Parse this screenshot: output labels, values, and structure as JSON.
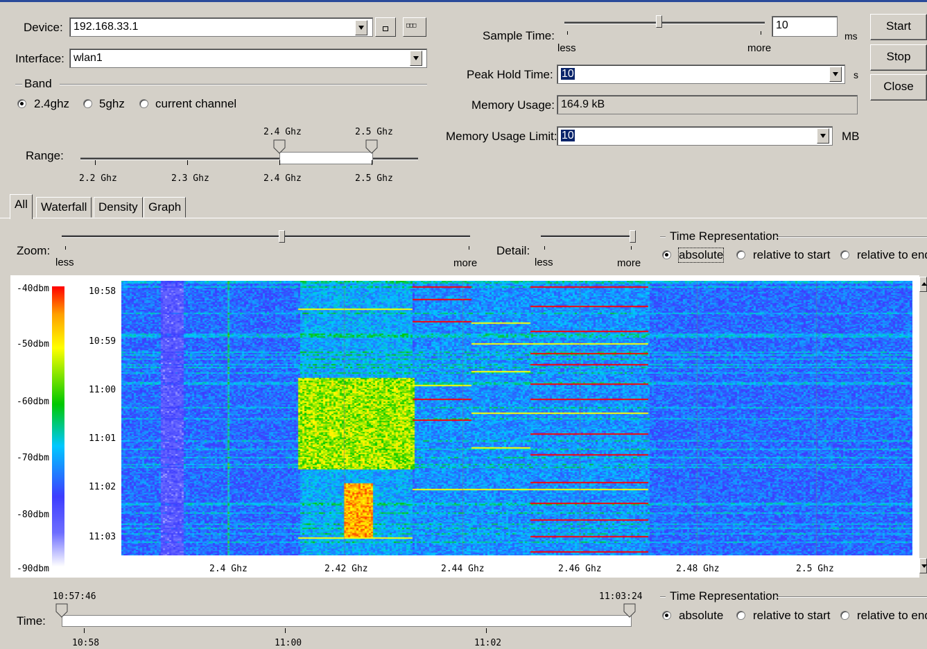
{
  "device": {
    "label": "Device:",
    "value": "192.168.33.1",
    "btn1": "▫",
    "btn2": "▫▫▫"
  },
  "interface": {
    "label": "Interface:",
    "value": "wlan1"
  },
  "band": {
    "label": "Band",
    "options": [
      {
        "label": "2.4ghz",
        "selected": true
      },
      {
        "label": "5ghz",
        "selected": false
      },
      {
        "label": "current channel",
        "selected": false
      }
    ]
  },
  "range": {
    "label": "Range:",
    "markers": [
      "2.4 Ghz",
      "2.5 Ghz"
    ],
    "ticks": [
      "2.2 Ghz",
      "2.3 Ghz",
      "2.4 Ghz",
      "2.5 Ghz"
    ]
  },
  "sample_time": {
    "label": "Sample Time:",
    "value": "10",
    "unit": "ms",
    "less": "less",
    "more": "more",
    "slider_fraction": 0.47
  },
  "peak_hold": {
    "label": "Peak Hold Time:",
    "value": "10",
    "unit": "s"
  },
  "memory_usage": {
    "label": "Memory Usage:",
    "value": "164.9 kB"
  },
  "memory_limit": {
    "label": "Memory Usage Limit:",
    "value": "10",
    "unit": "MB"
  },
  "buttons": {
    "start": "Start",
    "stop": "Stop",
    "close": "Close"
  },
  "tabs": [
    {
      "label": "All",
      "active": true
    },
    {
      "label": "Waterfall",
      "active": false
    },
    {
      "label": "Density",
      "active": false
    },
    {
      "label": "Graph",
      "active": false
    }
  ],
  "zoom": {
    "label": "Zoom:",
    "less": "less",
    "more": "more",
    "slider_fraction": 0.54
  },
  "detail": {
    "label": "Detail:",
    "less": "less",
    "more": "more",
    "slider_fraction": 1.0
  },
  "time_repr": {
    "title": "Time Representation",
    "options": [
      {
        "label": "absolute",
        "selected": true
      },
      {
        "label": "relative to start",
        "selected": false
      },
      {
        "label": "relative to end",
        "selected": false
      }
    ]
  },
  "waterfall": {
    "dbm_labels": [
      "-40dbm",
      "-50dbm",
      "-60dbm",
      "-70dbm",
      "-80dbm",
      "-90dbm"
    ],
    "time_labels": [
      "10:58",
      "10:59",
      "11:00",
      "11:01",
      "11:02",
      "11:03"
    ],
    "freq_labels": [
      "2.4 Ghz",
      "2.42 Ghz",
      "2.44 Ghz",
      "2.46 Ghz",
      "2.48 Ghz",
      "2.5 Ghz"
    ],
    "colors": {
      "max": "#ff0000",
      "high": "#ffff00",
      "mid": "#00c800",
      "low": "#00c8ff",
      "lower": "#3c3cff",
      "min": "#ffffff"
    }
  },
  "timeline": {
    "label": "Time:",
    "start": "10:57:46",
    "end": "11:03:24",
    "ticks": [
      "10:58",
      "11:00",
      "11:02"
    ]
  },
  "time_repr2": {
    "title": "Time Representation",
    "options": [
      {
        "label": "absolute",
        "selected": true
      },
      {
        "label": "relative to start",
        "selected": false
      },
      {
        "label": "relative to end",
        "selected": false
      }
    ]
  }
}
